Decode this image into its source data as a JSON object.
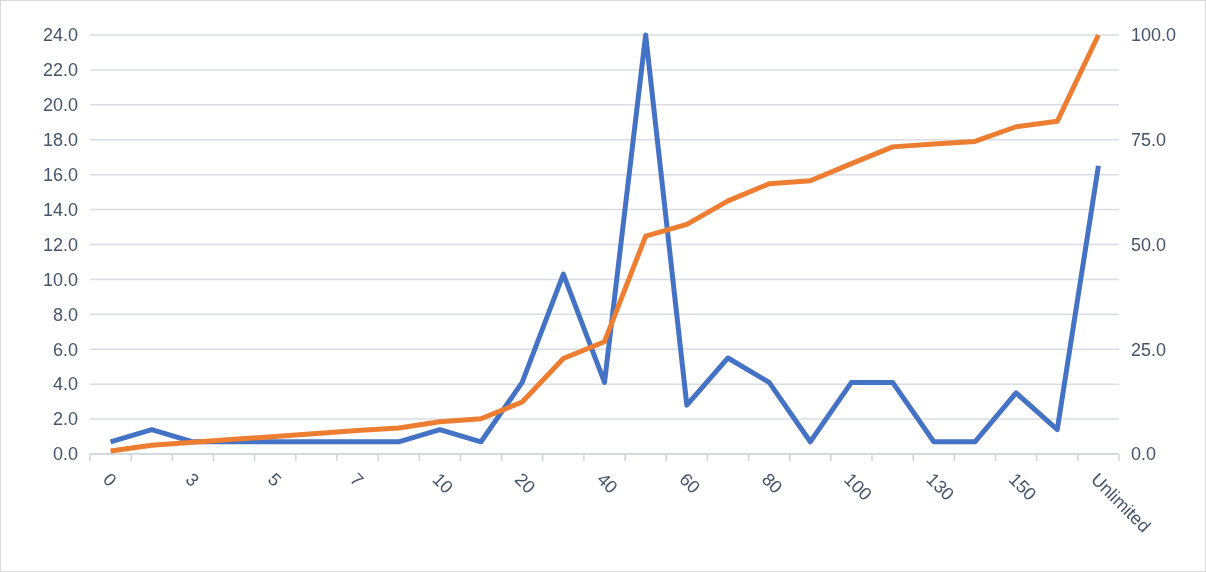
{
  "chart_data": {
    "type": "line",
    "categories": [
      "0",
      null,
      "3",
      null,
      "5",
      null,
      "7",
      null,
      "10",
      null,
      "20",
      null,
      "40",
      null,
      "60",
      null,
      "80",
      null,
      "100",
      null,
      "130",
      null,
      "150",
      null,
      "Unlimited"
    ],
    "series": [
      {
        "color": "#4472c4",
        "values": [
          0.7,
          1.4,
          0.7,
          0.7,
          0.7,
          0.7,
          0.7,
          0.7,
          1.4,
          0.7,
          4.1,
          10.3,
          4.1,
          24.0,
          2.8,
          5.5,
          4.1,
          0.7,
          4.1,
          4.1,
          0.7,
          0.7,
          3.5,
          1.4,
          16.5
        ]
      },
      {
        "color": "#ed7d31",
        "axis": "y2",
        "values": [
          0.7,
          2.1,
          2.8,
          3.5,
          4.2,
          4.9,
          5.6,
          6.2,
          7.7,
          8.4,
          12.4,
          22.8,
          26.8,
          52.0,
          54.8,
          60.4,
          64.5,
          65.2,
          69.3,
          73.3,
          74.0,
          74.6,
          78.1,
          79.4,
          100.0
        ]
      }
    ],
    "ylim": [
      0,
      24
    ],
    "yticks": [
      {
        "value": 0,
        "label": "0.0"
      },
      {
        "value": 2,
        "label": "2.0"
      },
      {
        "value": 4,
        "label": "4.0"
      },
      {
        "value": 6,
        "label": "6.0"
      },
      {
        "value": 8,
        "label": "8.0"
      },
      {
        "value": 10,
        "label": "10.0"
      },
      {
        "value": 12,
        "label": "12.0"
      },
      {
        "value": 14,
        "label": "14.0"
      },
      {
        "value": 16,
        "label": "16.0"
      },
      {
        "value": 18,
        "label": "18.0"
      },
      {
        "value": 20,
        "label": "20.0"
      },
      {
        "value": 22,
        "label": "22.0"
      },
      {
        "value": 24,
        "label": "24.0"
      }
    ],
    "y2lim": [
      0,
      100
    ],
    "y2ticks": [
      {
        "value": 0,
        "label": "0.0"
      },
      {
        "value": 25,
        "label": "25.0"
      },
      {
        "value": 50,
        "label": "50.0"
      },
      {
        "value": 75,
        "label": "75.0"
      },
      {
        "value": 100,
        "label": "100.0"
      }
    ],
    "grid": "y",
    "marker": "none",
    "line_style": "solid"
  }
}
